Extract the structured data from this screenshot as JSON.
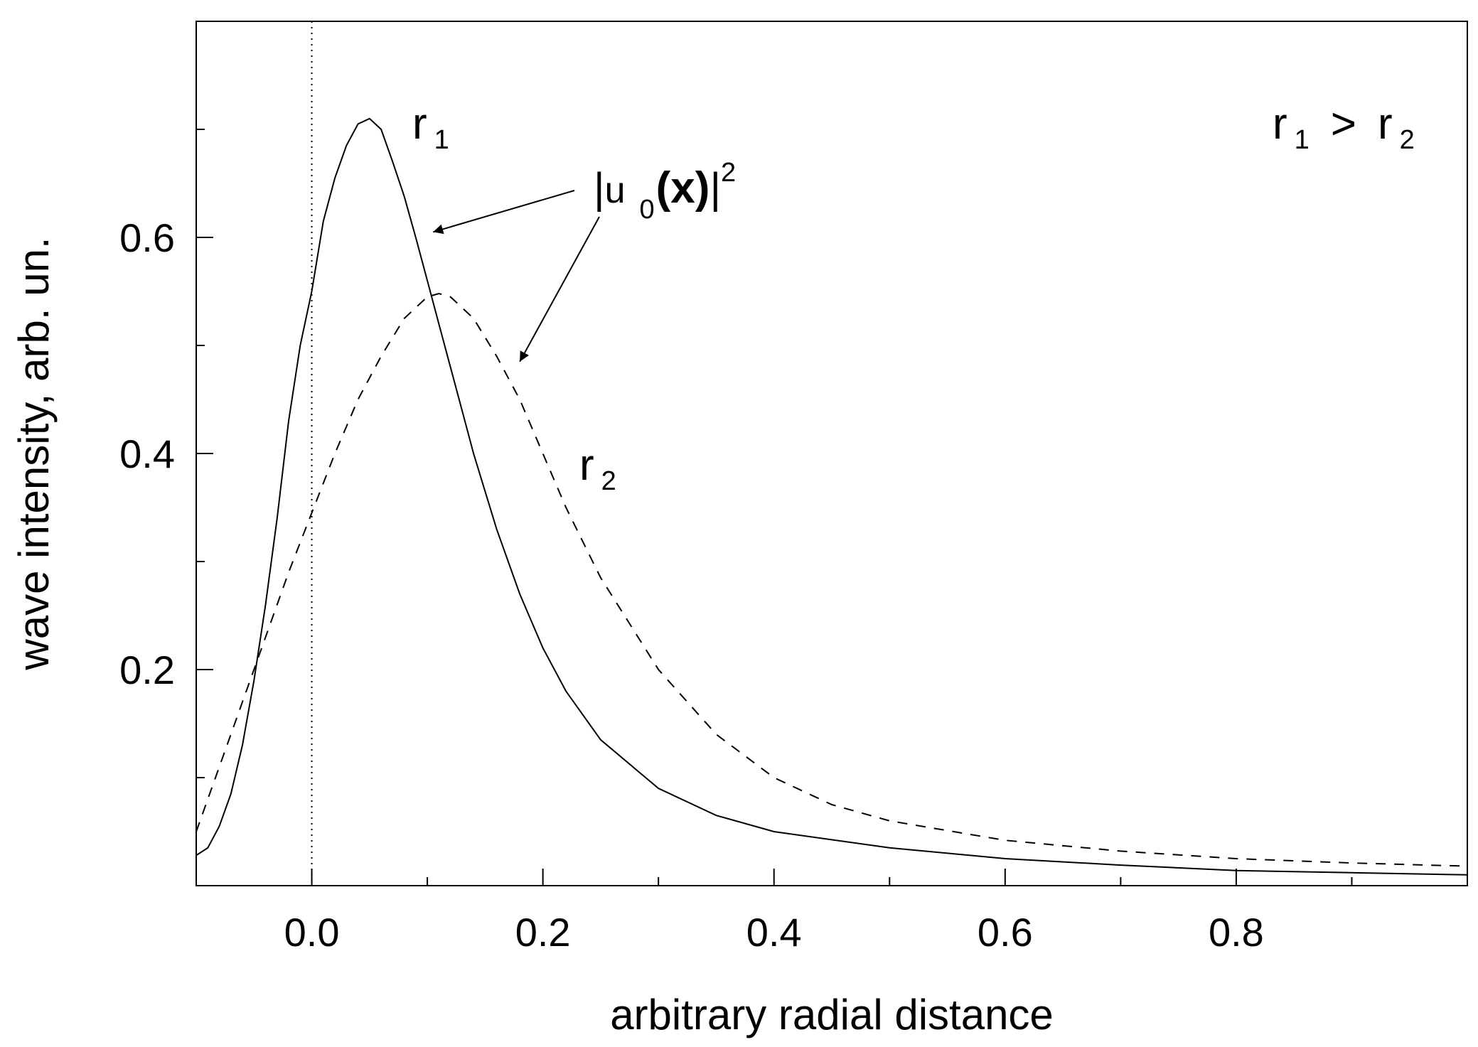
{
  "chart_data": {
    "type": "line",
    "xlabel": "arbitrary radial distance",
    "ylabel": "wave intensity, arb. un.",
    "xlim": [
      -0.1,
      1.0
    ],
    "ylim": [
      0.0,
      0.8
    ],
    "x_ticks": [
      0.0,
      0.2,
      0.4,
      0.6,
      0.8
    ],
    "x_tick_labels": [
      "0.0",
      "0.2",
      "0.4",
      "0.6",
      "0.8"
    ],
    "y_ticks": [
      0.2,
      0.4,
      0.6
    ],
    "y_tick_labels": [
      "0.2",
      "0.4",
      "0.6"
    ],
    "grid": false,
    "legend": "none",
    "reference_line_x": 0.0,
    "series": [
      {
        "name": "r",
        "sub": "1",
        "style": "solid",
        "color": "#000000",
        "x": [
          -0.1,
          -0.09,
          -0.08,
          -0.07,
          -0.06,
          -0.05,
          -0.04,
          -0.03,
          -0.02,
          -0.01,
          0.0,
          0.01,
          0.02,
          0.03,
          0.04,
          0.05,
          0.06,
          0.07,
          0.08,
          0.09,
          0.1,
          0.11,
          0.12,
          0.13,
          0.14,
          0.16,
          0.18,
          0.2,
          0.22,
          0.25,
          0.3,
          0.35,
          0.4,
          0.5,
          0.6,
          0.7,
          0.8,
          0.9,
          1.0
        ],
        "y": [
          0.028,
          0.035,
          0.055,
          0.085,
          0.13,
          0.19,
          0.26,
          0.34,
          0.43,
          0.5,
          0.55,
          0.615,
          0.655,
          0.685,
          0.705,
          0.71,
          0.7,
          0.67,
          0.638,
          0.6,
          0.56,
          0.52,
          0.48,
          0.44,
          0.4,
          0.33,
          0.27,
          0.22,
          0.18,
          0.135,
          0.09,
          0.065,
          0.05,
          0.035,
          0.025,
          0.019,
          0.014,
          0.012,
          0.01
        ]
      },
      {
        "name": "r",
        "sub": "2",
        "style": "dashed",
        "color": "#000000",
        "x": [
          -0.1,
          -0.08,
          -0.06,
          -0.04,
          -0.02,
          0.0,
          0.02,
          0.04,
          0.06,
          0.08,
          0.1,
          0.11,
          0.12,
          0.14,
          0.16,
          0.18,
          0.2,
          0.22,
          0.25,
          0.3,
          0.35,
          0.4,
          0.45,
          0.5,
          0.6,
          0.7,
          0.8,
          0.9,
          1.0
        ],
        "y": [
          0.05,
          0.11,
          0.17,
          0.23,
          0.29,
          0.345,
          0.4,
          0.45,
          0.49,
          0.525,
          0.545,
          0.548,
          0.545,
          0.525,
          0.49,
          0.45,
          0.4,
          0.35,
          0.285,
          0.2,
          0.14,
          0.1,
          0.075,
          0.06,
          0.042,
          0.032,
          0.025,
          0.021,
          0.018
        ]
      }
    ],
    "annotations": {
      "r1_label": {
        "base": "r",
        "sub": "1"
      },
      "r2_label": {
        "base": "r",
        "sub": "2"
      },
      "relation_label": {
        "r1": "r",
        "r1_sub": "1",
        "op": ">",
        "r2": "r",
        "r2_sub": "2"
      },
      "function_label": {
        "bar": "|",
        "u": "u",
        "sub": "0",
        "arg": "(x)",
        "bar2": "|",
        "sup": "2"
      },
      "arrows": [
        {
          "target_x": 0.105,
          "target_y": 0.605
        },
        {
          "target_x": 0.18,
          "target_y": 0.485
        }
      ]
    }
  }
}
